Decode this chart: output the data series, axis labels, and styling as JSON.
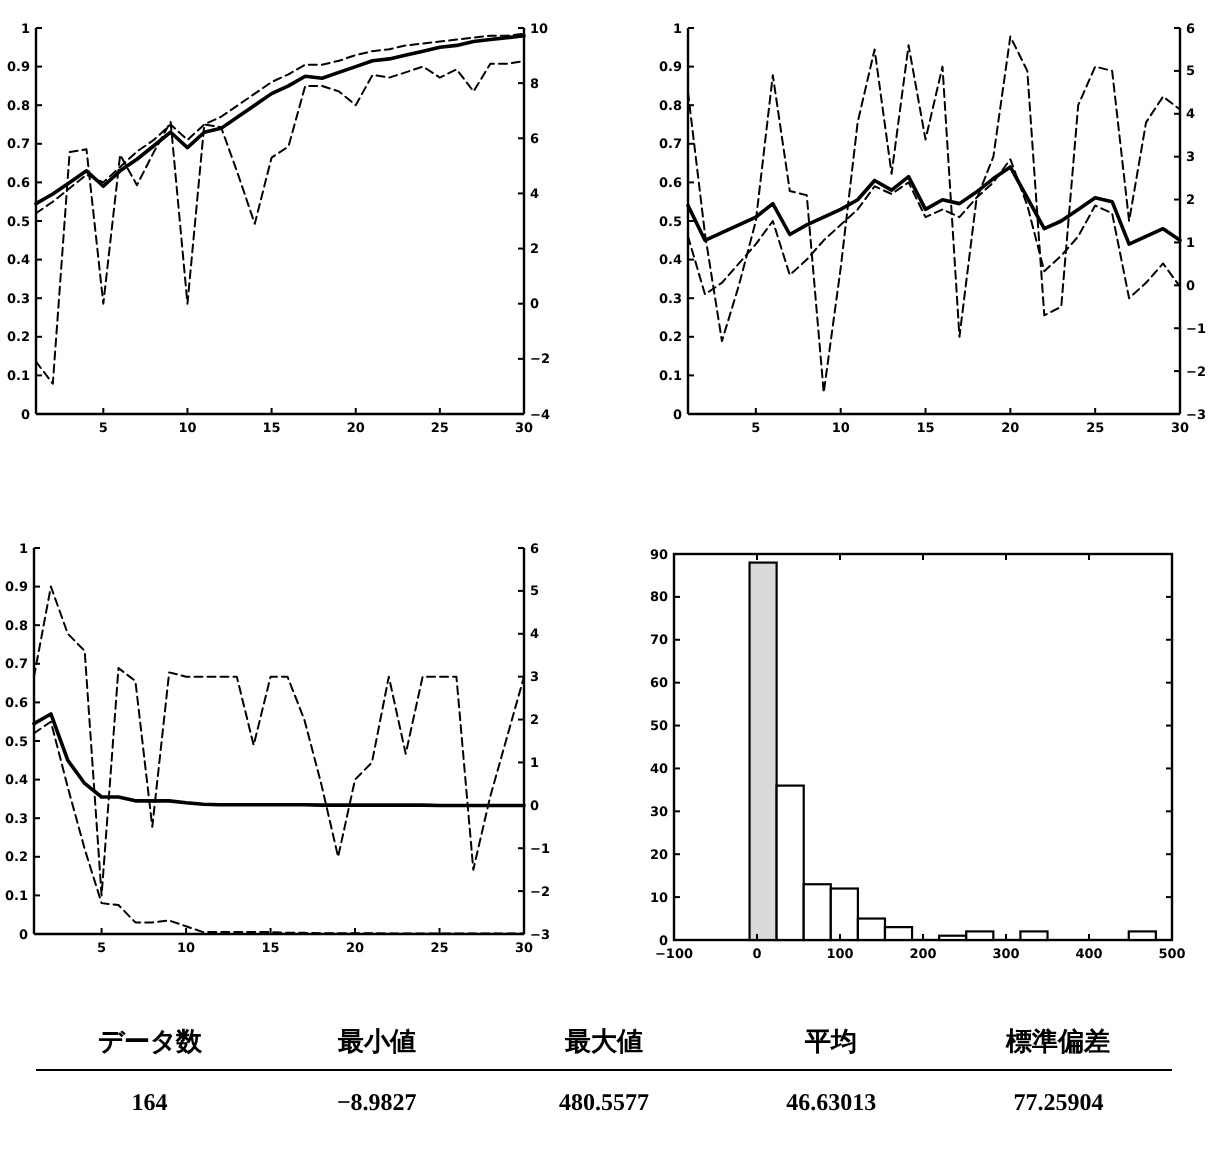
{
  "chart_data": [
    {
      "type": "line",
      "x": [
        1,
        2,
        3,
        4,
        5,
        6,
        7,
        8,
        9,
        10,
        11,
        12,
        13,
        14,
        15,
        16,
        17,
        18,
        19,
        20,
        21,
        22,
        23,
        24,
        25,
        26,
        27,
        28,
        29,
        30
      ],
      "xlim": [
        1,
        30
      ],
      "xticks": [
        5,
        10,
        15,
        20,
        25,
        30
      ],
      "ylim": [
        0,
        1
      ],
      "yticks": [
        0,
        0.1,
        0.2,
        0.3,
        0.4,
        0.5,
        0.6,
        0.7,
        0.8,
        0.9,
        1
      ],
      "y2lim": [
        -4,
        10
      ],
      "y2ticks": [
        -4,
        -2,
        0,
        2,
        4,
        6,
        8,
        10
      ],
      "series": [
        {
          "color": "#000000",
          "line_style": "solid",
          "values": [
            0.545,
            0.57,
            0.6,
            0.63,
            0.59,
            0.63,
            0.66,
            0.695,
            0.73,
            0.69,
            0.73,
            0.74,
            0.77,
            0.8,
            0.83,
            0.85,
            0.875,
            0.87,
            0.885,
            0.9,
            0.915,
            0.92,
            0.93,
            0.94,
            0.95,
            0.955,
            0.965,
            0.97,
            0.975,
            0.98
          ]
        },
        {
          "color": "#000000",
          "line_style": "dashed",
          "values": [
            0.52,
            0.55,
            0.585,
            0.62,
            0.6,
            0.64,
            0.68,
            0.71,
            0.75,
            0.71,
            0.75,
            0.77,
            0.8,
            0.83,
            0.86,
            0.88,
            0.905,
            0.905,
            0.915,
            0.93,
            0.94,
            0.945,
            0.955,
            0.96,
            0.965,
            0.97,
            0.975,
            0.98,
            0.98,
            0.985
          ]
        },
        {
          "color": "#000000",
          "line_style": "dashed",
          "axis": "y2",
          "values": [
            -2.1,
            -2.9,
            5.5,
            5.6,
            0.0,
            5.4,
            4.3,
            5.5,
            6.6,
            0.0,
            6.5,
            6.4,
            4.7,
            2.9,
            5.3,
            5.7,
            7.9,
            7.9,
            7.7,
            7.2,
            8.3,
            8.2,
            8.4,
            8.6,
            8.2,
            8.5,
            7.7,
            8.7,
            8.7,
            8.8
          ]
        }
      ]
    },
    {
      "type": "line",
      "x": [
        1,
        2,
        3,
        4,
        5,
        6,
        7,
        8,
        9,
        10,
        11,
        12,
        13,
        14,
        15,
        16,
        17,
        18,
        19,
        20,
        21,
        22,
        23,
        24,
        25,
        26,
        27,
        28,
        29,
        30
      ],
      "xlim": [
        1,
        30
      ],
      "xticks": [
        5,
        10,
        15,
        20,
        25,
        30
      ],
      "ylim": [
        0,
        1
      ],
      "yticks": [
        0,
        0.1,
        0.2,
        0.3,
        0.4,
        0.5,
        0.6,
        0.7,
        0.8,
        0.9,
        1
      ],
      "y2lim": [
        -3,
        6
      ],
      "y2ticks": [
        -3,
        -2,
        -1,
        0,
        1,
        2,
        3,
        4,
        5,
        6
      ],
      "series": [
        {
          "color": "#000000",
          "line_style": "solid",
          "values": [
            0.54,
            0.45,
            0.47,
            0.49,
            0.51,
            0.545,
            0.465,
            0.49,
            0.51,
            0.53,
            0.555,
            0.605,
            0.58,
            0.615,
            0.53,
            0.555,
            0.545,
            0.575,
            0.61,
            0.64,
            0.56,
            0.48,
            0.5,
            0.53,
            0.56,
            0.55,
            0.44,
            0.46,
            0.48,
            0.45
          ]
        },
        {
          "color": "#000000",
          "line_style": "dashed",
          "values": [
            0.46,
            0.31,
            0.34,
            0.39,
            0.44,
            0.5,
            0.36,
            0.4,
            0.45,
            0.49,
            0.53,
            0.59,
            0.57,
            0.6,
            0.51,
            0.53,
            0.51,
            0.56,
            0.6,
            0.66,
            0.54,
            0.37,
            0.41,
            0.46,
            0.54,
            0.52,
            0.3,
            0.34,
            0.39,
            0.33
          ]
        },
        {
          "color": "#000000",
          "line_style": "dashed",
          "axis": "y2",
          "values": [
            4.5,
            1.2,
            -1.3,
            0.0,
            1.5,
            4.9,
            2.2,
            2.1,
            -2.5,
            0.4,
            3.8,
            5.5,
            2.6,
            5.6,
            3.4,
            5.1,
            -1.2,
            2.0,
            3.0,
            5.8,
            5.0,
            -0.7,
            -0.5,
            4.2,
            5.1,
            5.0,
            1.5,
            3.8,
            4.4,
            4.1
          ]
        }
      ]
    },
    {
      "type": "line",
      "x": [
        1,
        2,
        3,
        4,
        5,
        6,
        7,
        8,
        9,
        10,
        11,
        12,
        13,
        14,
        15,
        16,
        17,
        18,
        19,
        20,
        21,
        22,
        23,
        24,
        25,
        26,
        27,
        28,
        29,
        30
      ],
      "xlim": [
        1,
        30
      ],
      "xticks": [
        5,
        10,
        15,
        20,
        25,
        30
      ],
      "ylim": [
        0,
        1
      ],
      "yticks": [
        0,
        0.1,
        0.2,
        0.3,
        0.4,
        0.5,
        0.6,
        0.7,
        0.8,
        0.9,
        1
      ],
      "y2lim": [
        -3,
        6
      ],
      "y2ticks": [
        -3,
        -2,
        -1,
        0,
        1,
        2,
        3,
        4,
        5,
        6
      ],
      "series": [
        {
          "color": "#000000",
          "line_style": "solid",
          "values": [
            0.545,
            0.57,
            0.45,
            0.39,
            0.355,
            0.355,
            0.345,
            0.345,
            0.345,
            0.34,
            0.336,
            0.335,
            0.335,
            0.335,
            0.335,
            0.335,
            0.335,
            0.334,
            0.334,
            0.334,
            0.334,
            0.334,
            0.334,
            0.334,
            0.333,
            0.333,
            0.333,
            0.333,
            0.333,
            0.333
          ]
        },
        {
          "color": "#000000",
          "line_style": "dashed",
          "values": [
            0.52,
            0.55,
            0.38,
            0.22,
            0.08,
            0.075,
            0.03,
            0.03,
            0.035,
            0.02,
            0.005,
            0.005,
            0.005,
            0.005,
            0.005,
            0.003,
            0.003,
            0.002,
            0.002,
            0.002,
            0.002,
            0.001,
            0.001,
            0.001,
            0.001,
            0.001,
            0.001,
            0.001,
            0.001,
            0.001
          ]
        },
        {
          "color": "#000000",
          "line_style": "dashed",
          "axis": "y2",
          "values": [
            3.0,
            5.1,
            4.0,
            3.6,
            -2.1,
            3.2,
            2.9,
            -0.5,
            3.1,
            3.0,
            3.0,
            3.0,
            3.0,
            1.4,
            3.0,
            3.0,
            2.0,
            0.5,
            -1.2,
            0.6,
            1.0,
            3.0,
            1.2,
            3.0,
            3.0,
            3.0,
            -1.5,
            0.2,
            1.6,
            3.0
          ]
        }
      ]
    },
    {
      "type": "histogram",
      "bins": [
        -8.98,
        23.65,
        56.29,
        88.92,
        121.56,
        154.19,
        186.83,
        219.47,
        252.1,
        284.74,
        317.37,
        350.01,
        382.65,
        415.28,
        447.92,
        480.56
      ],
      "values": [
        88,
        36,
        13,
        12,
        5,
        3,
        0,
        1,
        2,
        0,
        2,
        0,
        0,
        0,
        2
      ],
      "colors": [
        "#d9d9d9",
        "#ffffff",
        "#ffffff",
        "#ffffff",
        "#ffffff",
        "#ffffff",
        "#ffffff",
        "#ffffff",
        "#ffffff",
        "#ffffff",
        "#ffffff",
        "#ffffff",
        "#ffffff",
        "#ffffff",
        "#ffffff"
      ],
      "xlim": [
        -100,
        500
      ],
      "xticks": [
        -100,
        0,
        100,
        200,
        300,
        400,
        500
      ],
      "ylim": [
        0,
        90
      ],
      "yticks": [
        0,
        10,
        20,
        30,
        40,
        50,
        60,
        70,
        80,
        90
      ]
    },
    {
      "type": "other",
      "categories": [
        "データ数",
        "最小値",
        "最大値",
        "平均",
        "標準偏差"
      ],
      "values": [
        164,
        -8.9827,
        480.5577,
        46.63013,
        77.25904
      ],
      "data_labels": true
    }
  ]
}
